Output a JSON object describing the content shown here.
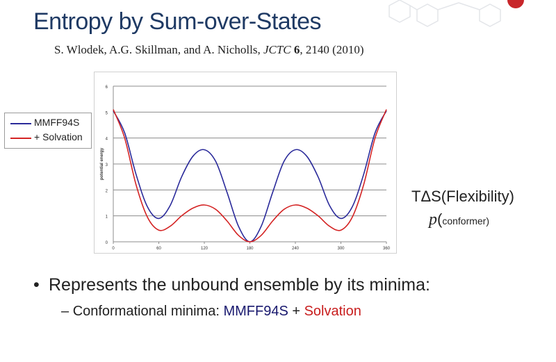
{
  "title": "Entropy by Sum-over-States",
  "citation": {
    "authors": "S. Wlodek, A.G. Skillman, and A. Nicholls,",
    "journal": "JCTC",
    "volume": "6",
    "pages_year": ", 2140 (2010)"
  },
  "side_labels": {
    "tds": "TΔS(Flexibility)",
    "p": "p",
    "paren": "(",
    "conformer": "conformer)"
  },
  "bullet": {
    "symbol": "•",
    "text": "Represents the unbound ensemble by its minima:"
  },
  "subbullet": {
    "dash": "–",
    "prefix": "Conformational minima: ",
    "mmff": "MMFF94S",
    "plus": " + ",
    "solvation": "Solvation"
  },
  "colors": {
    "mmff": "#2a2a9a",
    "solvation": "#d42424",
    "title": "#1f3a64"
  },
  "chart_data": {
    "type": "line",
    "xlabel": "",
    "ylabel": "potential energy",
    "xlim": [
      0,
      360
    ],
    "ylim": [
      0,
      6
    ],
    "x_ticks": [
      0,
      60,
      120,
      180,
      240,
      300,
      360
    ],
    "y_ticks": [
      0,
      1,
      2,
      3,
      4,
      5,
      6
    ],
    "grid": "horizontal",
    "legend": "left-outside",
    "series": [
      {
        "name": "MMFF94S",
        "color": "#2a2a9a",
        "x": [
          0,
          15,
          30,
          45,
          60,
          75,
          90,
          105,
          120,
          135,
          150,
          165,
          180,
          195,
          210,
          225,
          240,
          255,
          270,
          285,
          300,
          315,
          330,
          345,
          360
        ],
        "y": [
          5.05,
          4.2,
          2.6,
          1.35,
          0.9,
          1.4,
          2.5,
          3.3,
          3.55,
          3.1,
          1.9,
          0.6,
          0.0,
          0.6,
          1.9,
          3.1,
          3.55,
          3.3,
          2.5,
          1.4,
          0.9,
          1.35,
          2.6,
          4.2,
          5.05
        ]
      },
      {
        "name": "+ Solvation",
        "color": "#d42424",
        "x": [
          0,
          15,
          30,
          45,
          60,
          75,
          90,
          105,
          120,
          135,
          150,
          165,
          180,
          195,
          210,
          225,
          240,
          255,
          270,
          285,
          300,
          315,
          330,
          345,
          360
        ],
        "y": [
          5.1,
          4.0,
          2.2,
          0.95,
          0.45,
          0.6,
          1.0,
          1.3,
          1.42,
          1.25,
          0.8,
          0.25,
          0.0,
          0.25,
          0.8,
          1.25,
          1.42,
          1.3,
          1.0,
          0.6,
          0.45,
          0.95,
          2.2,
          4.0,
          5.1
        ]
      }
    ]
  }
}
